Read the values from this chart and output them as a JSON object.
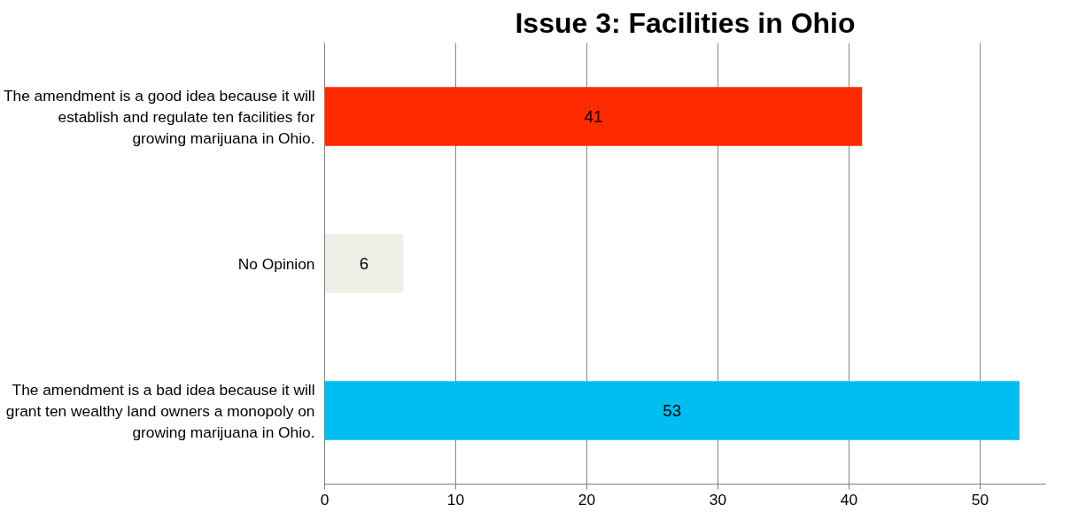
{
  "chart_data": {
    "type": "bar",
    "orientation": "horizontal",
    "title": "Issue 3: Facilities in Ohio",
    "categories": [
      "The amendment is a good idea because it will establish and regulate ten facilities for growing marijuana in Ohio.",
      "No Opinion",
      "The amendment is a bad idea because it will grant ten wealthy land owners a monopoly on growing marijuana in Ohio."
    ],
    "values": [
      41,
      6,
      53
    ],
    "colors": [
      "#ff2a00",
      "#efefe7",
      "#00bef0"
    ],
    "xlim": [
      0,
      55
    ],
    "xticks": [
      0,
      10,
      20,
      30,
      40,
      50
    ],
    "grid": "x",
    "data_labels": true
  }
}
